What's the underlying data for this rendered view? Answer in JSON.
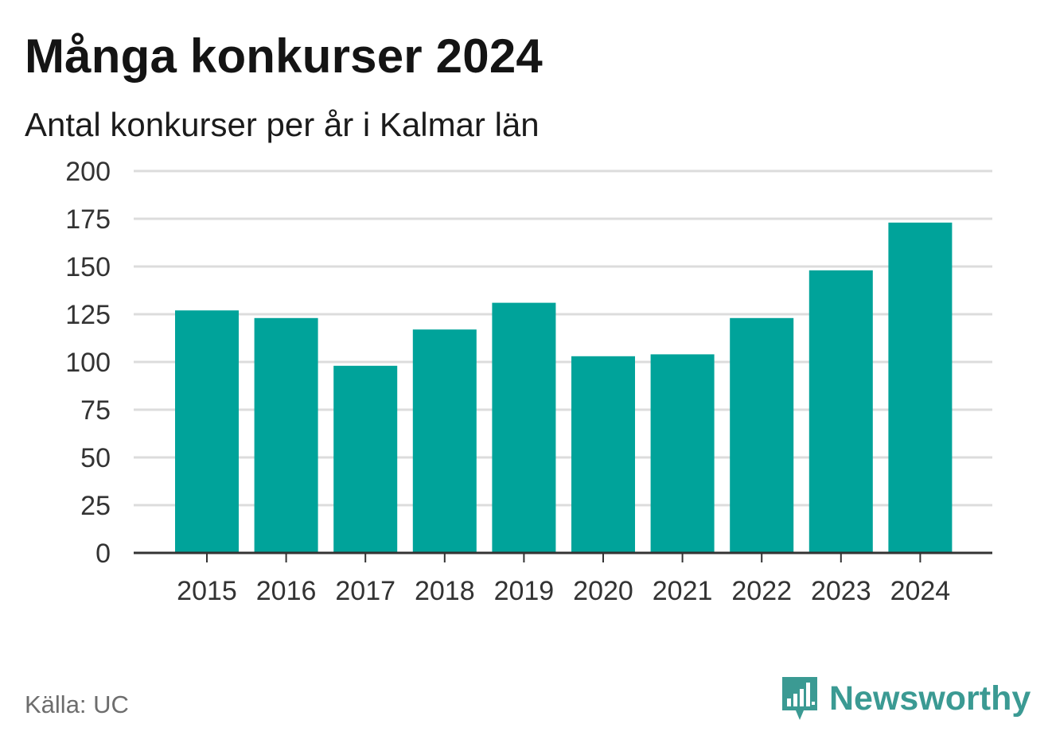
{
  "title": "Många konkurser 2024",
  "subtitle": "Antal konkurser per år i Kalmar län",
  "source": "Källa: UC",
  "brand": {
    "name": "Newsworthy",
    "icon": "bar-chart-speech-bubble-icon",
    "color": "#3b9a93"
  },
  "chart_data": {
    "type": "bar",
    "categories": [
      "2015",
      "2016",
      "2017",
      "2018",
      "2019",
      "2020",
      "2021",
      "2022",
      "2023",
      "2024"
    ],
    "values": [
      127,
      123,
      98,
      117,
      131,
      103,
      104,
      123,
      148,
      173
    ],
    "ylim": [
      0,
      200
    ],
    "yticks": [
      0,
      25,
      50,
      75,
      100,
      125,
      150,
      175,
      200
    ],
    "xlabel": "",
    "ylabel": "",
    "grid": true,
    "bar_color": "#00a39a",
    "grid_color": "#dcdcdc",
    "axis_color": "#333333"
  }
}
